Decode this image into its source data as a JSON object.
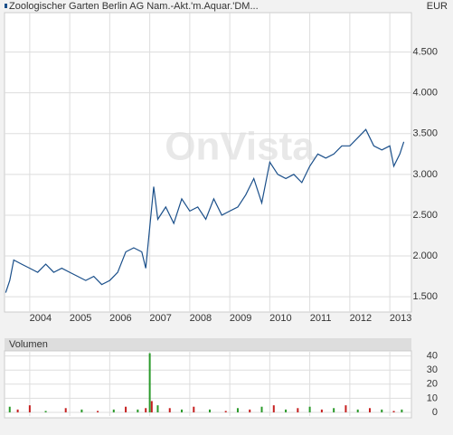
{
  "chart_data": [
    {
      "type": "line",
      "title": "Zoologischer Garten Berlin AG Nam.-Akt.'m.Aquar.'DM...",
      "unit": "EUR",
      "watermark": "OnVista",
      "color": "#1a4f8a",
      "grid": true,
      "x": [
        2003.4,
        2003.5,
        2003.6,
        2003.8,
        2004.0,
        2004.2,
        2004.4,
        2004.6,
        2004.8,
        2005.0,
        2005.2,
        2005.4,
        2005.6,
        2005.8,
        2006.0,
        2006.2,
        2006.4,
        2006.6,
        2006.8,
        2006.9,
        2007.0,
        2007.1,
        2007.2,
        2007.4,
        2007.6,
        2007.8,
        2008.0,
        2008.2,
        2008.4,
        2008.6,
        2008.8,
        2009.0,
        2009.2,
        2009.4,
        2009.6,
        2009.8,
        2010.0,
        2010.2,
        2010.4,
        2010.6,
        2010.8,
        2011.0,
        2011.2,
        2011.4,
        2011.6,
        2011.8,
        2012.0,
        2012.2,
        2012.4,
        2012.6,
        2012.8,
        2013.0,
        2013.1,
        2013.25,
        2013.35
      ],
      "values": [
        1550,
        1700,
        1950,
        1900,
        1850,
        1800,
        1900,
        1800,
        1850,
        1800,
        1750,
        1700,
        1750,
        1650,
        1700,
        1800,
        2050,
        2100,
        2050,
        1850,
        2350,
        2850,
        2450,
        2600,
        2400,
        2700,
        2550,
        2600,
        2450,
        2700,
        2500,
        2550,
        2600,
        2750,
        2950,
        2650,
        3150,
        3000,
        2950,
        3000,
        2900,
        3100,
        3250,
        3200,
        3250,
        3350,
        3350,
        3450,
        3550,
        3350,
        3300,
        3350,
        3100,
        3250,
        3400
      ],
      "xlim": [
        2003.37,
        2013.54
      ],
      "xticks": [
        2004,
        2005,
        2006,
        2007,
        2008,
        2009,
        2010,
        2011,
        2012,
        2013
      ],
      "ylim": [
        1313,
        4983
      ],
      "yticks": [
        {
          "value": 1500,
          "label": "1.500"
        },
        {
          "value": 2000,
          "label": "2.000"
        },
        {
          "value": 2500,
          "label": "2.500"
        },
        {
          "value": 3000,
          "label": "3.000"
        },
        {
          "value": 3500,
          "label": "3.500"
        },
        {
          "value": 4000,
          "label": "4.000"
        },
        {
          "value": 4500,
          "label": "4.500"
        }
      ]
    },
    {
      "type": "bar",
      "title": "Volumen",
      "grid": true,
      "x": [
        2003.5,
        2003.7,
        2004.0,
        2004.4,
        2004.9,
        2005.3,
        2005.7,
        2006.1,
        2006.4,
        2006.7,
        2006.9,
        2007.0,
        2007.05,
        2007.2,
        2007.5,
        2007.8,
        2008.1,
        2008.5,
        2008.9,
        2009.2,
        2009.5,
        2009.8,
        2010.1,
        2010.4,
        2010.7,
        2011.0,
        2011.3,
        2011.6,
        2011.9,
        2012.2,
        2012.5,
        2012.8,
        2013.1,
        2013.3
      ],
      "values": [
        4,
        2,
        5,
        1,
        3,
        2,
        1,
        2,
        4,
        2,
        3,
        42,
        8,
        5,
        3,
        2,
        4,
        2,
        1,
        3,
        2,
        4,
        5,
        2,
        3,
        4,
        2,
        3,
        5,
        2,
        3,
        2,
        1,
        2
      ],
      "colors": [
        "#2a9a2a",
        "#c62020",
        "#c62020",
        "#2a9a2a",
        "#c62020",
        "#2a9a2a",
        "#c62020",
        "#2a9a2a",
        "#c62020",
        "#2a9a2a",
        "#c62020",
        "#2a9a2a",
        "#c62020",
        "#2a9a2a",
        "#c62020",
        "#2a9a2a",
        "#c62020",
        "#2a9a2a",
        "#c62020",
        "#2a9a2a",
        "#c62020",
        "#2a9a2a",
        "#c62020",
        "#2a9a2a",
        "#c62020",
        "#2a9a2a",
        "#c62020",
        "#2a9a2a",
        "#c62020",
        "#2a9a2a",
        "#c62020",
        "#2a9a2a",
        "#c62020",
        "#2a9a2a"
      ],
      "ylim": [
        -2.6,
        43
      ],
      "yticks": [
        0,
        10,
        20,
        30,
        40
      ]
    }
  ]
}
